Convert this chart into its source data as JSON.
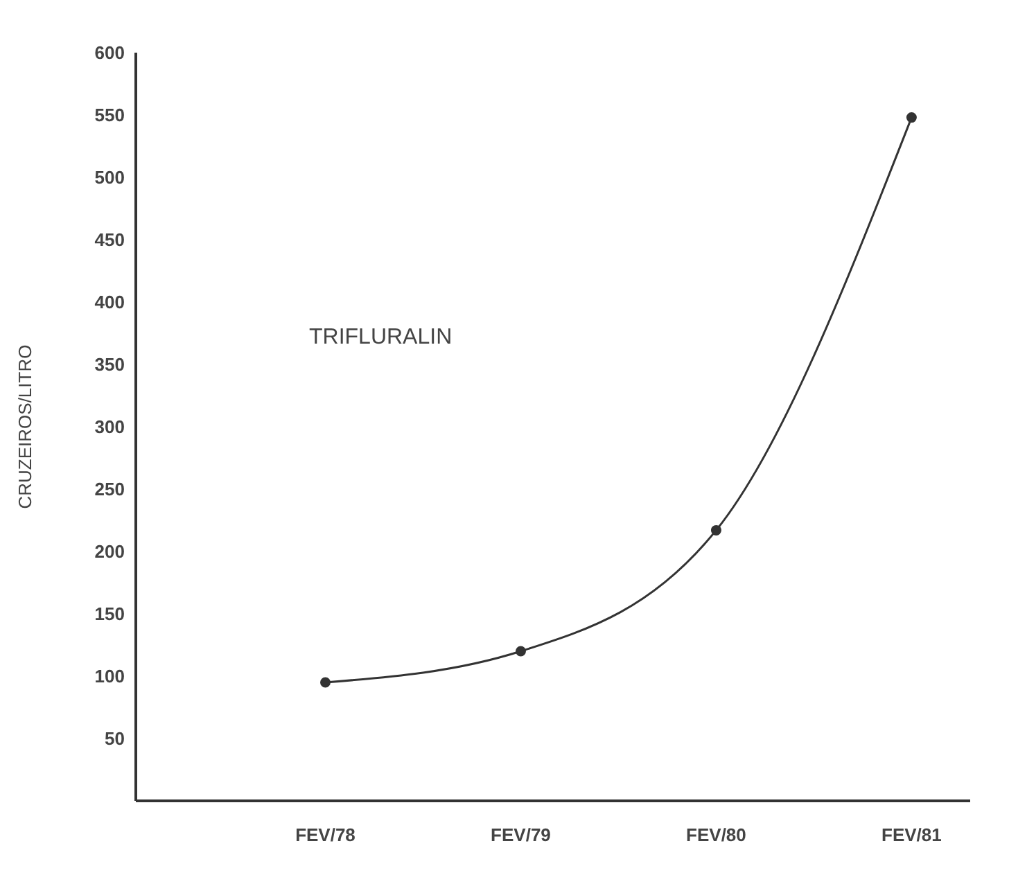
{
  "chart_data": {
    "type": "line",
    "ylabel": "CRUZEIROS/LITRO",
    "categories": [
      "FEV/78",
      "FEV/79",
      "FEV/80",
      "FEV/81"
    ],
    "series": [
      {
        "name": "TRIFLURALIN",
        "color": "#333333",
        "values": [
          95,
          120,
          217,
          548
        ]
      }
    ],
    "ylim": [
      0,
      600
    ],
    "yticks": [
      50,
      100,
      150,
      200,
      250,
      300,
      350,
      400,
      450,
      500,
      550,
      600
    ],
    "marker": "circle",
    "line_style": "solid"
  }
}
